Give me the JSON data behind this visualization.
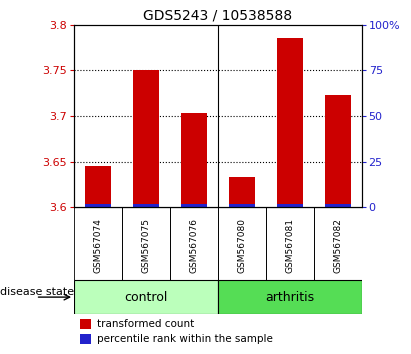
{
  "title": "GDS5243 / 10538588",
  "samples": [
    "GSM567074",
    "GSM567075",
    "GSM567076",
    "GSM567080",
    "GSM567081",
    "GSM567082"
  ],
  "groups": [
    "control",
    "control",
    "control",
    "arthritis",
    "arthritis",
    "arthritis"
  ],
  "red_values": [
    3.645,
    3.75,
    3.703,
    3.633,
    3.785,
    3.723
  ],
  "blue_values": [
    3.604,
    3.604,
    3.604,
    3.604,
    3.604,
    3.604
  ],
  "base": 3.6,
  "ymin": 3.6,
  "ymax": 3.8,
  "yticks": [
    3.6,
    3.65,
    3.7,
    3.75,
    3.8
  ],
  "right_yticks_pct": [
    0,
    25,
    50,
    75,
    100
  ],
  "right_ylabels": [
    "0",
    "25",
    "50",
    "75",
    "100%"
  ],
  "bar_color_red": "#cc0000",
  "bar_color_blue": "#2222cc",
  "control_color": "#bbffbb",
  "arthritis_color": "#55dd55",
  "label_color_left": "#cc0000",
  "label_color_right": "#2222cc",
  "bar_width": 0.55,
  "legend_red": "transformed count",
  "legend_blue": "percentile rank within the sample",
  "tick_label_fontsize": 8,
  "title_fontsize": 10
}
